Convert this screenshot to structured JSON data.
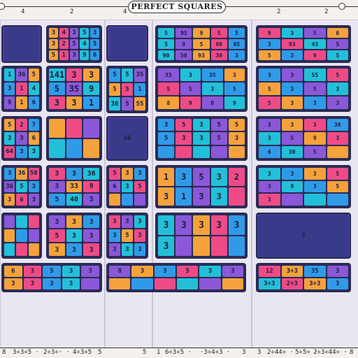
{
  "title": "PERFECT SQUARES",
  "top_ticks": [
    {
      "label": "4"
    },
    {
      "label": "2"
    },
    {
      "label": "4"
    },
    {
      "label": "5"
    },
    {
      "label": "2"
    },
    {
      "label": "2"
    }
  ],
  "bottom_ticks": [
    {
      "label": "8"
    },
    {
      "label": "3÷3÷5 ·"
    },
    {
      "label": "2÷3÷· ·"
    },
    {
      "label": "4÷3÷5"
    },
    {
      "label": "5"
    },
    {
      "label": "5"
    },
    {
      "label": "1"
    },
    {
      "label": "6÷3÷5 ·"
    },
    {
      "label": "·3÷4÷3 ·"
    },
    {
      "label": "3"
    },
    {
      "label": "3"
    },
    {
      "label": "2÷44÷ ·"
    },
    {
      "label": "5÷5÷ ·"
    },
    {
      "label": "2÷3÷44÷ ·"
    },
    {
      "label": "8"
    }
  ],
  "colors": {
    "blue": "#2f9be8",
    "cyan": "#22c0d8",
    "orange": "#f5a23c",
    "pink": "#ee4b86",
    "purple": "#8a58d8",
    "violet": "#6a3fc4",
    "navy": "#3a3a8a",
    "yellow": "#f7c94a"
  },
  "panels": [
    {
      "cells": [
        "",
        "",
        "",
        "",
        ""
      ]
    },
    {
      "cells": [
        "3",
        "4",
        "3",
        "5",
        "3",
        "3",
        "2",
        "5",
        "4",
        "5",
        "5",
        "1",
        "3",
        "9",
        "6"
      ]
    },
    {
      "cells": [
        "",
        "",
        "",
        "",
        "",
        "",
        "",
        "",
        ""
      ]
    },
    {
      "cells": [
        "5",
        "95",
        "9",
        "5",
        "5",
        "5",
        "9",
        "5",
        "99",
        "95",
        "90",
        "50",
        "93",
        "30",
        "3"
      ]
    },
    {
      "cells": [
        "9",
        "3",
        "5",
        "0",
        "3",
        "93",
        "43",
        "5",
        "5",
        "3",
        "9",
        "5"
      ]
    },
    {
      "cells": [
        "1",
        "36",
        "5",
        "3",
        "1",
        "4",
        "9",
        "1",
        "6"
      ]
    },
    {
      "cells": [
        "141",
        "3",
        "3",
        "5",
        "35",
        "9",
        "3",
        "3",
        "1"
      ]
    },
    {
      "cells": [
        "5",
        "5",
        "35",
        "5",
        "5",
        "1",
        "36",
        "5",
        "55",
        "5"
      ]
    },
    {
      "cells": [
        "33",
        "3",
        "35",
        "3",
        "5",
        "5",
        "3",
        "5",
        "8",
        "9",
        "0",
        "9"
      ]
    },
    {
      "cells": [
        "3",
        "3",
        "55",
        "5",
        "5",
        "3",
        "5",
        "3",
        "5",
        "3",
        "3",
        "3"
      ]
    },
    {
      "cells": [
        "5",
        "2",
        "7",
        "3",
        "3",
        "6",
        "64",
        "3",
        "3",
        "x3"
      ]
    },
    {
      "cells": [
        "",
        "",
        "",
        "",
        "",
        ""
      ]
    },
    {
      "cells": [
        "16",
        "3",
        "36",
        "5",
        "3",
        "3",
        "3",
        "36",
        "3",
        "35",
        "8",
        "95",
        "3"
      ]
    },
    {
      "cells": [
        "3",
        "5",
        "3",
        "5",
        "5",
        "5",
        "3",
        "3",
        "5",
        "3"
      ]
    },
    {
      "cells": [
        "3",
        "3",
        "3",
        "36",
        "3",
        "5",
        "9",
        "3",
        "6",
        "30",
        "5"
      ]
    },
    {
      "cells": [
        "3",
        "36",
        "58",
        "36",
        "5",
        "3",
        "3",
        "6",
        "3"
      ]
    },
    {
      "cells": [
        "3",
        "3",
        "36",
        "3",
        "33",
        "9",
        "5",
        "40",
        "3"
      ]
    },
    {
      "cells": [
        "5",
        "3",
        "3",
        "6",
        "3",
        "5"
      ]
    },
    {
      "cells": [
        "1",
        "3",
        "5",
        "3",
        "2",
        "3",
        "1",
        "3",
        "3"
      ]
    },
    {
      "cells": [
        "3",
        "3",
        "3",
        "5",
        "3",
        "9",
        "3",
        "5",
        "3"
      ]
    },
    {
      "cells": [
        "",
        "",
        "",
        "",
        "",
        ""
      ]
    },
    {
      "cells": [
        "3",
        "3",
        "3",
        "5",
        "3",
        "3",
        "3",
        "3",
        "3"
      ]
    },
    {
      "cells": [
        "3",
        "3",
        "3",
        "3",
        "5",
        "3",
        "3",
        "3",
        "3"
      ]
    },
    {
      "cells": [
        "3",
        "3",
        "3",
        "3",
        "3",
        "3"
      ]
    },
    {
      "cells": [
        "3",
        "3",
        "3",
        "3",
        "3",
        "3",
        "3",
        "3"
      ]
    },
    {
      "cells": [
        "6",
        "3",
        "5",
        "3",
        "3",
        "3",
        "3",
        "3",
        "3"
      ]
    },
    {
      "cells": [
        "8",
        "3",
        "3",
        "5",
        "3",
        "3"
      ]
    },
    {
      "cells": [
        "12",
        "3÷3",
        "35",
        "3",
        "3÷3",
        "2÷3",
        "3÷3",
        "3",
        "36",
        "3",
        "3"
      ]
    }
  ]
}
